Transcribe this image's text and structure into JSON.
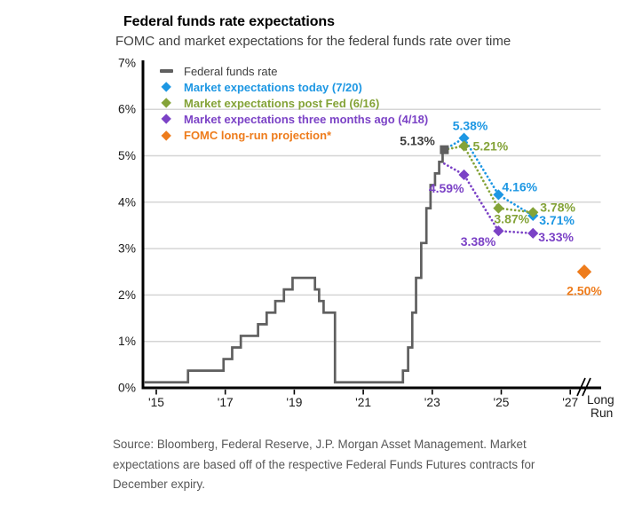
{
  "header": {
    "title": "Federal funds rate expectations",
    "subtitle": "FOMC and market expectations for the federal funds rate over time"
  },
  "footer": {
    "source_lines": [
      "Source: Bloomberg, Federal Reserve, J.P. Morgan Asset Management. Market",
      "expectations are based off of the respective Federal Funds Futures contracts for",
      "December expiry."
    ]
  },
  "chart_data": {
    "type": "line",
    "title": "Federal funds rate expectations",
    "subtitle": "FOMC and market expectations for the federal funds rate over time",
    "grid": "horizontal",
    "legend_position": "top-left-inside",
    "ylim": [
      0,
      7
    ],
    "yticks": [
      0,
      1,
      2,
      3,
      4,
      5,
      6,
      7
    ],
    "ytick_labels": [
      "0%",
      "1%",
      "2%",
      "3%",
      "4%",
      "5%",
      "6%",
      "7%"
    ],
    "xticks": [
      2015,
      2017,
      2019,
      2021,
      2023,
      2025,
      2027
    ],
    "xtick_labels": [
      "'15",
      "'17",
      "'19",
      "'21",
      "'23",
      "'25",
      "'27"
    ],
    "x_extra_label": "Long Run",
    "series": [
      {
        "name": "Federal funds rate",
        "color": "#5f5f5f",
        "type": "step-line",
        "marker": "square-end",
        "end_label": "5.13%",
        "points": [
          [
            2015.0,
            0.12
          ],
          [
            2015.92,
            0.37
          ],
          [
            2016.95,
            0.62
          ],
          [
            2017.2,
            0.87
          ],
          [
            2017.45,
            1.12
          ],
          [
            2017.95,
            1.37
          ],
          [
            2018.2,
            1.62
          ],
          [
            2018.45,
            1.87
          ],
          [
            2018.7,
            2.12
          ],
          [
            2018.95,
            2.37
          ],
          [
            2019.6,
            2.12
          ],
          [
            2019.72,
            1.87
          ],
          [
            2019.85,
            1.62
          ],
          [
            2020.18,
            0.12
          ],
          [
            2022.15,
            0.37
          ],
          [
            2022.3,
            0.87
          ],
          [
            2022.42,
            1.62
          ],
          [
            2022.53,
            2.37
          ],
          [
            2022.68,
            3.12
          ],
          [
            2022.83,
            3.87
          ],
          [
            2022.95,
            4.37
          ],
          [
            2023.08,
            4.62
          ],
          [
            2023.2,
            4.87
          ],
          [
            2023.3,
            5.13
          ],
          [
            2023.35,
            5.13
          ]
        ]
      },
      {
        "name": "Market expectations today (7/20)",
        "color": "#1d97e3",
        "type": "dotted-line",
        "marker": "diamond",
        "start": [
          2023.35,
          5.13
        ],
        "points": [
          [
            2023.92,
            5.38
          ],
          [
            2024.92,
            4.16
          ],
          [
            2025.92,
            3.71
          ]
        ],
        "point_labels": [
          "5.38%",
          "4.16%",
          "3.71%"
        ]
      },
      {
        "name": "Market expectations post Fed (6/16)",
        "color": "#84a338",
        "type": "dotted-line",
        "marker": "diamond",
        "start": [
          2023.35,
          5.13
        ],
        "points": [
          [
            2023.92,
            5.21
          ],
          [
            2024.92,
            3.87
          ],
          [
            2025.92,
            3.78
          ]
        ],
        "point_labels": [
          "5.21%",
          "3.87%",
          "3.78%"
        ]
      },
      {
        "name": "Market expectations three months ago (4/18)",
        "color": "#7b42c6",
        "type": "dotted-line",
        "marker": "diamond",
        "start": [
          2023.35,
          4.83
        ],
        "points": [
          [
            2023.92,
            4.59
          ],
          [
            2024.92,
            3.38
          ],
          [
            2025.92,
            3.33
          ]
        ],
        "point_labels": [
          "4.59%",
          "3.38%",
          "3.33%"
        ]
      },
      {
        "name": "FOMC long-run projection*",
        "color": "#ee7c1c",
        "type": "long-run-point",
        "marker": "diamond-large",
        "points": [
          [
            "Long Run",
            2.5
          ]
        ],
        "point_labels": [
          "2.50%"
        ]
      }
    ]
  }
}
